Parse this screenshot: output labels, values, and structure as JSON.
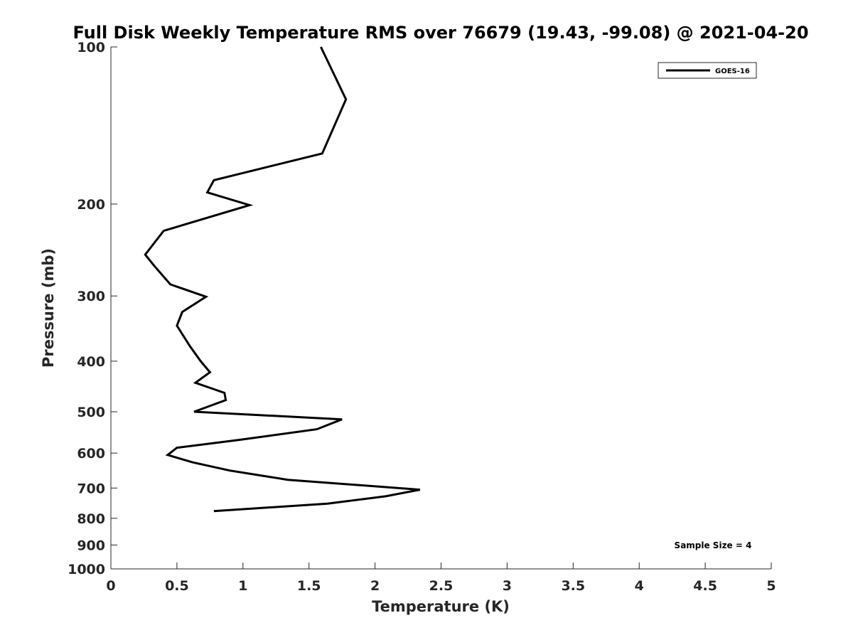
{
  "chart_data": {
    "type": "line",
    "title": "Full Disk Weekly Temperature RMS over 76679 (19.43, -99.08) @ 2021-04-20",
    "xlabel": "Temperature (K)",
    "ylabel": "Pressure (mb)",
    "xlim": [
      0,
      5
    ],
    "ylim": [
      100,
      1000
    ],
    "y_scale": "log",
    "y_reversed": true,
    "x_ticks": [
      "0",
      "0.5",
      "1",
      "1.5",
      "2",
      "2.5",
      "3",
      "3.5",
      "4",
      "4.5",
      "5"
    ],
    "y_ticks": [
      "100",
      "200",
      "300",
      "400",
      "500",
      "600",
      "700",
      "800",
      "900",
      "1000"
    ],
    "grid": false,
    "legend_position": "top-right",
    "series": [
      {
        "name": "GOES-16",
        "color": "#000000",
        "x": [
          1.59,
          1.78,
          1.6,
          0.78,
          0.73,
          1.05,
          0.4,
          0.26,
          0.33,
          0.45,
          0.72,
          0.54,
          0.5,
          0.6,
          0.68,
          0.75,
          0.64,
          0.86,
          0.87,
          0.63,
          1.75,
          1.56,
          0.97,
          0.5,
          0.43,
          0.62,
          0.9,
          1.34,
          2.34,
          2.08,
          1.64,
          0.78
        ],
        "y": [
          100,
          126,
          160,
          180,
          190,
          201,
          225,
          250,
          263,
          285,
          301,
          322,
          342,
          375,
          400,
          420,
          440,
          460,
          475,
          500,
          517,
          540,
          566,
          586,
          605,
          625,
          648,
          675,
          705,
          726,
          750,
          775
        ]
      }
    ],
    "annotation": "Sample Size = 4"
  }
}
